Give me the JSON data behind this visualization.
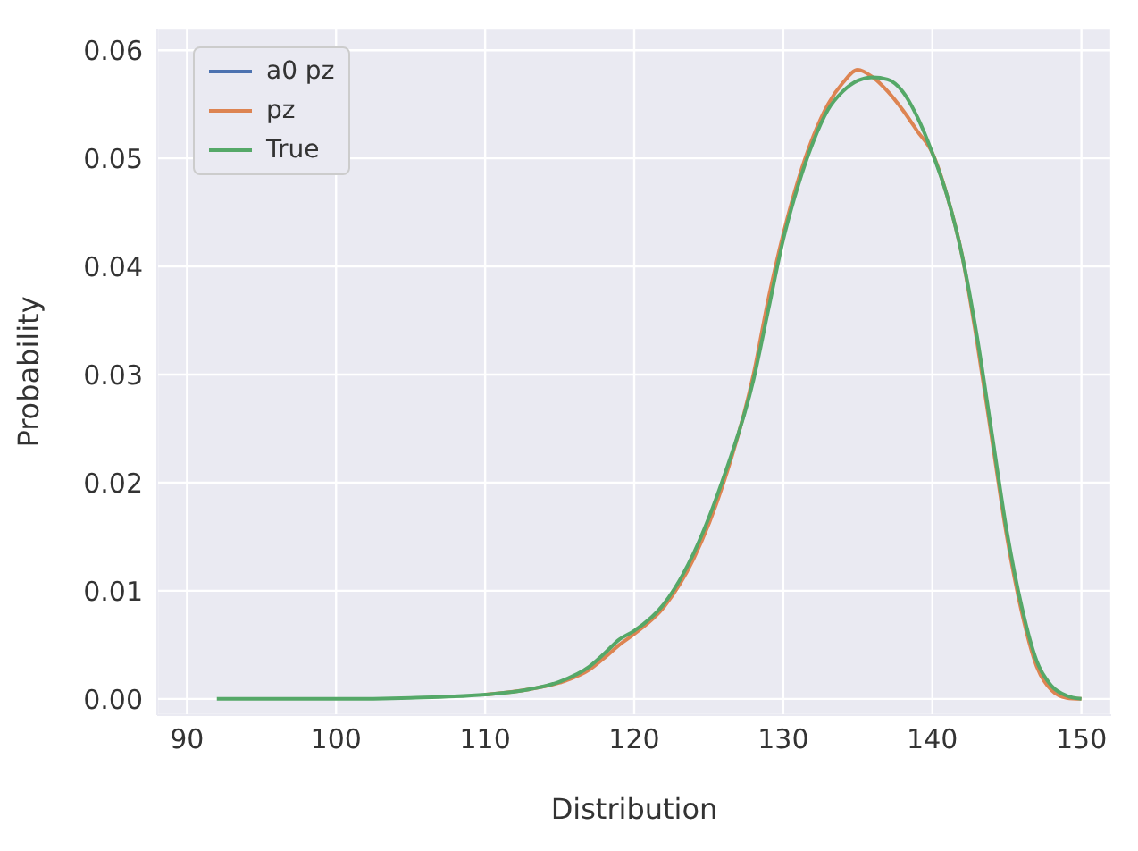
{
  "chart_data": {
    "type": "line",
    "xlabel": "Distribution",
    "ylabel": "Probability",
    "xlim": [
      88,
      152
    ],
    "xticks": [
      90,
      100,
      110,
      120,
      130,
      140,
      150
    ],
    "ylim": [
      -0.0015,
      0.062
    ],
    "yticks": [
      {
        "value": 0,
        "label": "0.00"
      },
      {
        "value": 0.01,
        "label": "0.01"
      },
      {
        "value": 0.02,
        "label": "0.02"
      },
      {
        "value": 0.03,
        "label": "0.03"
      },
      {
        "value": 0.04,
        "label": "0.04"
      },
      {
        "value": 0.05,
        "label": "0.05"
      },
      {
        "value": 0.06,
        "label": "0.06"
      }
    ],
    "grid": true,
    "legend": "top left",
    "marker": "none",
    "line_style": "solid",
    "series": [
      {
        "name": "a0 pz",
        "color": "#4c72b0"
      },
      {
        "name": "pz",
        "color": "#dd8452",
        "x": [
          110,
          113,
          115,
          117,
          118,
          119,
          120,
          122,
          124,
          126,
          128,
          129,
          130,
          131,
          132,
          133,
          134,
          135,
          136,
          137,
          138,
          139,
          140,
          141,
          142,
          143,
          144,
          145,
          146,
          147,
          148,
          149,
          150
        ],
        "values": [
          0.0004,
          0.0009,
          0.0015,
          0.0027,
          0.0038,
          0.005,
          0.006,
          0.0085,
          0.013,
          0.02,
          0.03,
          0.037,
          0.043,
          0.048,
          0.052,
          0.055,
          0.057,
          0.0582,
          0.0575,
          0.0562,
          0.0545,
          0.0525,
          0.0505,
          0.0465,
          0.041,
          0.033,
          0.024,
          0.015,
          0.008,
          0.003,
          0.0008,
          0.0001,
          0
        ]
      },
      {
        "name": "True",
        "color": "#55a868",
        "x": [
          92,
          100,
          105,
          110,
          113,
          115,
          117,
          118,
          119,
          120,
          122,
          124,
          126,
          128,
          129,
          130,
          131,
          132,
          133,
          134,
          135,
          136,
          137,
          138,
          139,
          140,
          141,
          142,
          143,
          144,
          145,
          146,
          147,
          148,
          149,
          150
        ],
        "values": [
          0,
          0,
          0.0001,
          0.0004,
          0.0009,
          0.0016,
          0.003,
          0.0042,
          0.0055,
          0.0063,
          0.0088,
          0.0135,
          0.0205,
          0.0295,
          0.036,
          0.0425,
          0.0475,
          0.0515,
          0.0545,
          0.0562,
          0.0572,
          0.0575,
          0.0573,
          0.0562,
          0.0538,
          0.0505,
          0.0465,
          0.041,
          0.0335,
          0.0245,
          0.0155,
          0.0085,
          0.0035,
          0.0012,
          0.0003,
          0
        ]
      }
    ]
  }
}
